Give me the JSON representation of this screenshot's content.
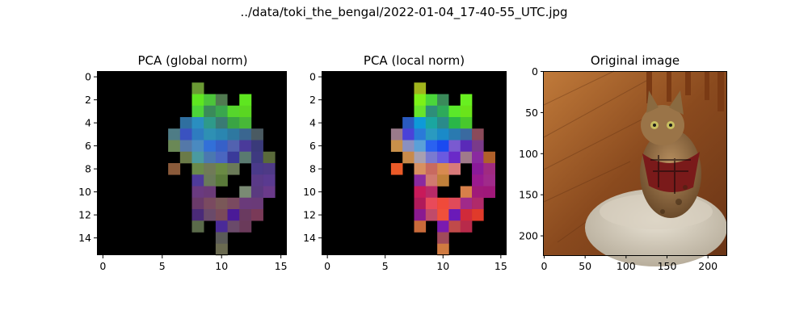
{
  "suptitle": "../data/toki_the_bengal/2022-01-04_17-40-55_UTC.jpg",
  "chart_data": [
    {
      "type": "heatmap",
      "title": "PCA (global norm)",
      "xlim": [
        -0.5,
        15.5
      ],
      "ylim": [
        15.5,
        -0.5
      ],
      "xticks": [
        "0",
        "5",
        "10",
        "15"
      ],
      "yticks": [
        "0",
        "2",
        "4",
        "6",
        "8",
        "10",
        "12",
        "14"
      ],
      "grid_size": [
        16,
        16
      ],
      "background": "#000000",
      "cells": [
        {
          "r": 1,
          "c": 8,
          "color": "#6a9a34"
        },
        {
          "r": 2,
          "c": 8,
          "color": "#5ee620"
        },
        {
          "r": 2,
          "c": 9,
          "color": "#4cc43a"
        },
        {
          "r": 2,
          "c": 10,
          "color": "#507a50"
        },
        {
          "r": 2,
          "c": 11,
          "color": "#000000"
        },
        {
          "r": 2,
          "c": 12,
          "color": "#5ee620"
        },
        {
          "r": 3,
          "c": 8,
          "color": "#4cd438"
        },
        {
          "r": 3,
          "c": 9,
          "color": "#3a8a5a"
        },
        {
          "r": 3,
          "c": 10,
          "color": "#3aa64e"
        },
        {
          "r": 3,
          "c": 11,
          "color": "#56d62c"
        },
        {
          "r": 3,
          "c": 12,
          "color": "#5ad622"
        },
        {
          "r": 4,
          "c": 7,
          "color": "#2f6fa0"
        },
        {
          "r": 4,
          "c": 8,
          "color": "#2a8ec0"
        },
        {
          "r": 4,
          "c": 9,
          "color": "#2e9a8a"
        },
        {
          "r": 4,
          "c": 10,
          "color": "#3a7a74"
        },
        {
          "r": 4,
          "c": 11,
          "color": "#3aa444"
        },
        {
          "r": 4,
          "c": 12,
          "color": "#48b838"
        },
        {
          "r": 5,
          "c": 6,
          "color": "#4e7c86"
        },
        {
          "r": 5,
          "c": 7,
          "color": "#3a52c0"
        },
        {
          "r": 5,
          "c": 8,
          "color": "#2e7cc0"
        },
        {
          "r": 5,
          "c": 9,
          "color": "#2e90b4"
        },
        {
          "r": 5,
          "c": 10,
          "color": "#2a86b0"
        },
        {
          "r": 5,
          "c": 11,
          "color": "#2e78a0"
        },
        {
          "r": 5,
          "c": 12,
          "color": "#3a6690"
        },
        {
          "r": 5,
          "c": 13,
          "color": "#4a5a62"
        },
        {
          "r": 6,
          "c": 6,
          "color": "#6a8856"
        },
        {
          "r": 6,
          "c": 7,
          "color": "#5478a8"
        },
        {
          "r": 6,
          "c": 8,
          "color": "#4a8ac0"
        },
        {
          "r": 6,
          "c": 9,
          "color": "#3270d8"
        },
        {
          "r": 6,
          "c": 10,
          "color": "#3660c8"
        },
        {
          "r": 6,
          "c": 11,
          "color": "#5262b0"
        },
        {
          "r": 6,
          "c": 12,
          "color": "#4a3a9a"
        },
        {
          "r": 6,
          "c": 13,
          "color": "#3a3a7a"
        },
        {
          "r": 7,
          "c": 7,
          "color": "#6a7a48"
        },
        {
          "r": 7,
          "c": 8,
          "color": "#4a9aa0"
        },
        {
          "r": 7,
          "c": 9,
          "color": "#4a78b0"
        },
        {
          "r": 7,
          "c": 10,
          "color": "#4a66c0"
        },
        {
          "r": 7,
          "c": 11,
          "color": "#3a3a9a"
        },
        {
          "r": 7,
          "c": 12,
          "color": "#5a7a70"
        },
        {
          "r": 7,
          "c": 13,
          "color": "#3e3a80"
        },
        {
          "r": 7,
          "c": 14,
          "color": "#5a6a3a"
        },
        {
          "r": 8,
          "c": 6,
          "color": "#8a5a3a"
        },
        {
          "r": 8,
          "c": 8,
          "color": "#6a8a4a"
        },
        {
          "r": 8,
          "c": 9,
          "color": "#707a58"
        },
        {
          "r": 8,
          "c": 10,
          "color": "#6a8a44"
        },
        {
          "r": 8,
          "c": 11,
          "color": "#6a7a58"
        },
        {
          "r": 8,
          "c": 13,
          "color": "#4a3a8a"
        },
        {
          "r": 8,
          "c": 14,
          "color": "#4e3a86"
        },
        {
          "r": 9,
          "c": 8,
          "color": "#4e3a9a"
        },
        {
          "r": 9,
          "c": 9,
          "color": "#6a7a5a"
        },
        {
          "r": 9,
          "c": 10,
          "color": "#5a7a3a"
        },
        {
          "r": 9,
          "c": 13,
          "color": "#5a3a88"
        },
        {
          "r": 9,
          "c": 14,
          "color": "#5a3a90"
        },
        {
          "r": 10,
          "c": 8,
          "color": "#6a3a80"
        },
        {
          "r": 10,
          "c": 9,
          "color": "#6a3a78"
        },
        {
          "r": 10,
          "c": 12,
          "color": "#7a8a74"
        },
        {
          "r": 10,
          "c": 13,
          "color": "#5a3a80"
        },
        {
          "r": 10,
          "c": 14,
          "color": "#6a3a8a"
        },
        {
          "r": 11,
          "c": 8,
          "color": "#6a3a6a"
        },
        {
          "r": 11,
          "c": 9,
          "color": "#7a4a60"
        },
        {
          "r": 11,
          "c": 10,
          "color": "#7a5858"
        },
        {
          "r": 11,
          "c": 11,
          "color": "#7a4a60"
        },
        {
          "r": 11,
          "c": 12,
          "color": "#6a3a7a"
        },
        {
          "r": 11,
          "c": 13,
          "color": "#6a3a78"
        },
        {
          "r": 12,
          "c": 8,
          "color": "#4a2a78"
        },
        {
          "r": 12,
          "c": 9,
          "color": "#6a4a6a"
        },
        {
          "r": 12,
          "c": 10,
          "color": "#7a4a5a"
        },
        {
          "r": 12,
          "c": 11,
          "color": "#4a1a98"
        },
        {
          "r": 12,
          "c": 12,
          "color": "#6a3a60"
        },
        {
          "r": 12,
          "c": 13,
          "color": "#7a3a58"
        },
        {
          "r": 13,
          "c": 8,
          "color": "#5a6a4a"
        },
        {
          "r": 13,
          "c": 10,
          "color": "#4a2a98"
        },
        {
          "r": 13,
          "c": 11,
          "color": "#6a4a6a"
        },
        {
          "r": 13,
          "c": 12,
          "color": "#6a3a5a"
        },
        {
          "r": 14,
          "c": 10,
          "color": "#5a5a58"
        },
        {
          "r": 15,
          "c": 10,
          "color": "#6a6a50"
        }
      ]
    },
    {
      "type": "heatmap",
      "title": "PCA (local norm)",
      "xlim": [
        -0.5,
        15.5
      ],
      "ylim": [
        15.5,
        -0.5
      ],
      "xticks": [
        "0",
        "5",
        "10",
        "15"
      ],
      "yticks": [
        "0",
        "2",
        "4",
        "6",
        "8",
        "10",
        "12",
        "14"
      ],
      "grid_size": [
        16,
        16
      ],
      "background": "#000000",
      "cells": [
        {
          "r": 1,
          "c": 8,
          "color": "#a0b41c"
        },
        {
          "r": 2,
          "c": 8,
          "color": "#7cf218"
        },
        {
          "r": 2,
          "c": 9,
          "color": "#4ad63a"
        },
        {
          "r": 2,
          "c": 10,
          "color": "#3a8a5a"
        },
        {
          "r": 2,
          "c": 11,
          "color": "#000000"
        },
        {
          "r": 2,
          "c": 12,
          "color": "#68f020"
        },
        {
          "r": 3,
          "c": 8,
          "color": "#66e42c"
        },
        {
          "r": 3,
          "c": 9,
          "color": "#2e8e7a"
        },
        {
          "r": 3,
          "c": 10,
          "color": "#2eaa5a"
        },
        {
          "r": 3,
          "c": 11,
          "color": "#5ae82a"
        },
        {
          "r": 3,
          "c": 12,
          "color": "#6ae41a"
        },
        {
          "r": 4,
          "c": 7,
          "color": "#2a5ac0"
        },
        {
          "r": 4,
          "c": 8,
          "color": "#0e9ad8"
        },
        {
          "r": 4,
          "c": 9,
          "color": "#1aa6a0"
        },
        {
          "r": 4,
          "c": 10,
          "color": "#2a8a8a"
        },
        {
          "r": 4,
          "c": 11,
          "color": "#2ab648"
        },
        {
          "r": 4,
          "c": 12,
          "color": "#48c82c"
        },
        {
          "r": 5,
          "c": 6,
          "color": "#9a7a8a"
        },
        {
          "r": 5,
          "c": 7,
          "color": "#4a42d8"
        },
        {
          "r": 5,
          "c": 8,
          "color": "#2a7ad8"
        },
        {
          "r": 5,
          "c": 9,
          "color": "#2a9ac0"
        },
        {
          "r": 5,
          "c": 10,
          "color": "#1a8ac8"
        },
        {
          "r": 5,
          "c": 11,
          "color": "#2a7ab0"
        },
        {
          "r": 5,
          "c": 12,
          "color": "#3a6aa0"
        },
        {
          "r": 5,
          "c": 13,
          "color": "#8a4a5a"
        },
        {
          "r": 6,
          "c": 6,
          "color": "#c8904a"
        },
        {
          "r": 6,
          "c": 7,
          "color": "#8a90c0"
        },
        {
          "r": 6,
          "c": 8,
          "color": "#5aa0d8"
        },
        {
          "r": 6,
          "c": 9,
          "color": "#2a62f0"
        },
        {
          "r": 6,
          "c": 10,
          "color": "#1a4af0"
        },
        {
          "r": 6,
          "c": 11,
          "color": "#7a5ad0"
        },
        {
          "r": 6,
          "c": 12,
          "color": "#5a2ab8"
        },
        {
          "r": 6,
          "c": 13,
          "color": "#7a3a8a"
        },
        {
          "r": 7,
          "c": 7,
          "color": "#c88a4a"
        },
        {
          "r": 7,
          "c": 8,
          "color": "#a8a0b0"
        },
        {
          "r": 7,
          "c": 9,
          "color": "#7a7ad0"
        },
        {
          "r": 7,
          "c": 10,
          "color": "#6a5ae0"
        },
        {
          "r": 7,
          "c": 11,
          "color": "#6a2ac8"
        },
        {
          "r": 7,
          "c": 12,
          "color": "#a07a8a"
        },
        {
          "r": 7,
          "c": 13,
          "color": "#8a2aa0"
        },
        {
          "r": 7,
          "c": 14,
          "color": "#b0602a"
        },
        {
          "r": 8,
          "c": 6,
          "color": "#ea5a28"
        },
        {
          "r": 8,
          "c": 8,
          "color": "#d89060"
        },
        {
          "r": 8,
          "c": 9,
          "color": "#c86a60"
        },
        {
          "r": 8,
          "c": 10,
          "color": "#d88a50"
        },
        {
          "r": 8,
          "c": 11,
          "color": "#d87a7a"
        },
        {
          "r": 8,
          "c": 13,
          "color": "#8a1a9a"
        },
        {
          "r": 8,
          "c": 14,
          "color": "#a02a80"
        },
        {
          "r": 9,
          "c": 8,
          "color": "#8a2aa0"
        },
        {
          "r": 9,
          "c": 9,
          "color": "#d07a70"
        },
        {
          "r": 9,
          "c": 10,
          "color": "#c0803a"
        },
        {
          "r": 9,
          "c": 13,
          "color": "#9a1a90"
        },
        {
          "r": 9,
          "c": 14,
          "color": "#a02a8a"
        },
        {
          "r": 10,
          "c": 8,
          "color": "#c81a5a"
        },
        {
          "r": 10,
          "c": 9,
          "color": "#b82a68"
        },
        {
          "r": 10,
          "c": 12,
          "color": "#d8804a"
        },
        {
          "r": 10,
          "c": 13,
          "color": "#a01a7a"
        },
        {
          "r": 10,
          "c": 14,
          "color": "#a0187a"
        },
        {
          "r": 11,
          "c": 8,
          "color": "#b01a5a"
        },
        {
          "r": 11,
          "c": 9,
          "color": "#e84a5a"
        },
        {
          "r": 11,
          "c": 10,
          "color": "#f04a3a"
        },
        {
          "r": 11,
          "c": 11,
          "color": "#e04a5a"
        },
        {
          "r": 11,
          "c": 12,
          "color": "#a02a8a"
        },
        {
          "r": 11,
          "c": 13,
          "color": "#b02a6a"
        },
        {
          "r": 12,
          "c": 8,
          "color": "#8a1a90"
        },
        {
          "r": 12,
          "c": 9,
          "color": "#c04a6a"
        },
        {
          "r": 12,
          "c": 10,
          "color": "#f0503a"
        },
        {
          "r": 12,
          "c": 11,
          "color": "#6a1ab8"
        },
        {
          "r": 12,
          "c": 12,
          "color": "#d02a3a"
        },
        {
          "r": 12,
          "c": 13,
          "color": "#e03a2a"
        },
        {
          "r": 13,
          "c": 8,
          "color": "#c86a3a"
        },
        {
          "r": 13,
          "c": 10,
          "color": "#7a1ab0"
        },
        {
          "r": 13,
          "c": 11,
          "color": "#c04a4a"
        },
        {
          "r": 13,
          "c": 12,
          "color": "#b82a4a"
        },
        {
          "r": 14,
          "c": 10,
          "color": "#a04a5a"
        },
        {
          "r": 15,
          "c": 10,
          "color": "#d07a40"
        }
      ]
    },
    {
      "type": "image",
      "title": "Original image",
      "xlim": [
        -0.5,
        223.5
      ],
      "ylim": [
        223.5,
        -0.5
      ],
      "xticks": [
        "0",
        "50",
        "100",
        "150",
        "200"
      ],
      "yticks": [
        "0",
        "50",
        "100",
        "150",
        "200"
      ],
      "image_description": "photo-placeholder"
    }
  ]
}
